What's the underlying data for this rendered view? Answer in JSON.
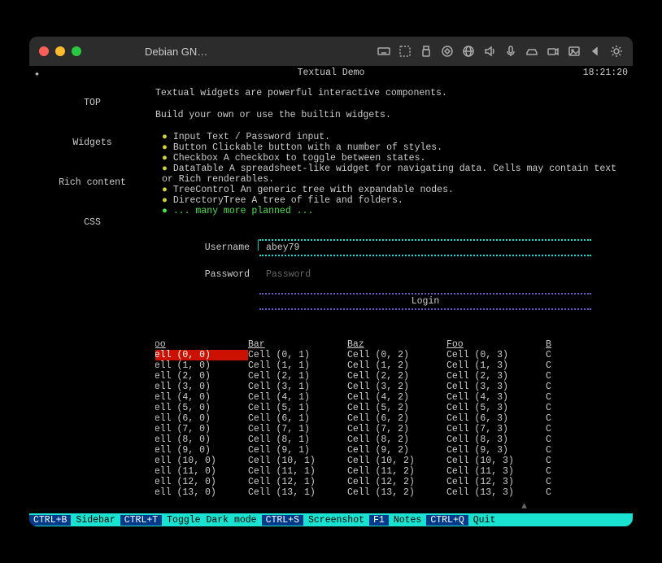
{
  "window": {
    "title": "Debian GN…",
    "traffic_colors": [
      "#ff5f57",
      "#febc2e",
      "#28c840"
    ]
  },
  "header": {
    "left_glyph": "✦",
    "title": "Textual Demo",
    "clock": "18:21:20"
  },
  "sidebar": {
    "items": [
      "TOP",
      "Widgets",
      "Rich content",
      "CSS"
    ]
  },
  "intro": {
    "p1": "Textual widgets are powerful interactive components.",
    "p2": "Build your own or use the builtin widgets."
  },
  "features": [
    {
      "kw": "Input",
      "rest": " Text / Password input."
    },
    {
      "kw": "Button",
      "rest": " Clickable button with a number of styles."
    },
    {
      "kw": "Checkbox",
      "rest": " A checkbox to toggle between states."
    },
    {
      "kw": "DataTable",
      "rest": " A spreadsheet-like widget for navigating data. Cells may contain text or Rich renderables."
    },
    {
      "kw": "TreeControl",
      "rest": " An generic tree with expandable nodes."
    },
    {
      "kw": "DirectoryTree",
      "rest": " A tree of file and folders."
    }
  ],
  "features_more": "... many more planned ...",
  "form": {
    "username_label": "Username",
    "username_value": "abey79",
    "password_label": "Password",
    "password_placeholder": "Password",
    "login_label": "Login"
  },
  "table": {
    "columns": [
      "Foo",
      "Bar",
      "Baz",
      "Foo",
      "B"
    ],
    "rows": 14
  },
  "footer": [
    {
      "key": "CTRL+B",
      "label": "Sidebar"
    },
    {
      "key": "CTRL+T",
      "label": "Toggle Dark mode"
    },
    {
      "key": "CTRL+S",
      "label": "Screenshot"
    },
    {
      "key": "F1",
      "label": "Notes"
    },
    {
      "key": "CTRL+Q",
      "label": "Quit"
    }
  ],
  "colors": {
    "accent": "#19e3d0",
    "footer_key_bg": "#043a8c",
    "login_border": "#6a5acd",
    "selected_bg": "#cc1100",
    "bullet_std": "#cfcf3a",
    "bullet_more": "#4ae24a"
  }
}
